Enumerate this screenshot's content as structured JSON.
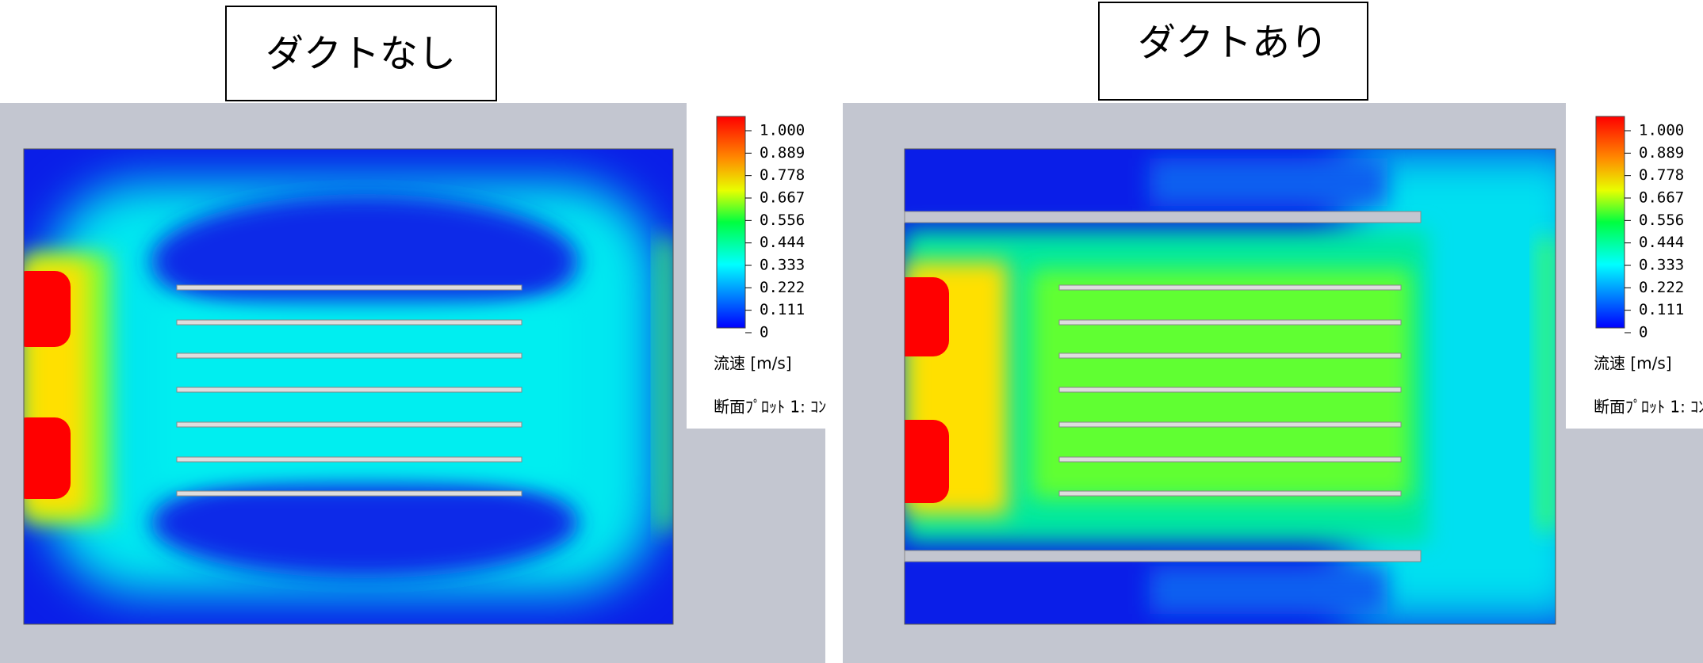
{
  "panels": [
    {
      "title": "ダクトなし",
      "colorbar_ticks": [
        "1.000",
        "0.889",
        "0.778",
        "0.667",
        "0.556",
        "0.444",
        "0.333",
        "0.222",
        "0.111",
        "0"
      ],
      "unit_label": "流速 [m/s]",
      "plot_label": "断面ﾌﾟﾛｯﾄ 1: ｺﾝ"
    },
    {
      "title": "ダクトあり",
      "colorbar_ticks": [
        "1.000",
        "0.889",
        "0.778",
        "0.667",
        "0.556",
        "0.444",
        "0.333",
        "0.222",
        "0.111",
        "0"
      ],
      "unit_label": "流速 [m/s]",
      "plot_label": "断面ﾌﾟﾛｯﾄ 1: ｺﾝ"
    }
  ]
}
